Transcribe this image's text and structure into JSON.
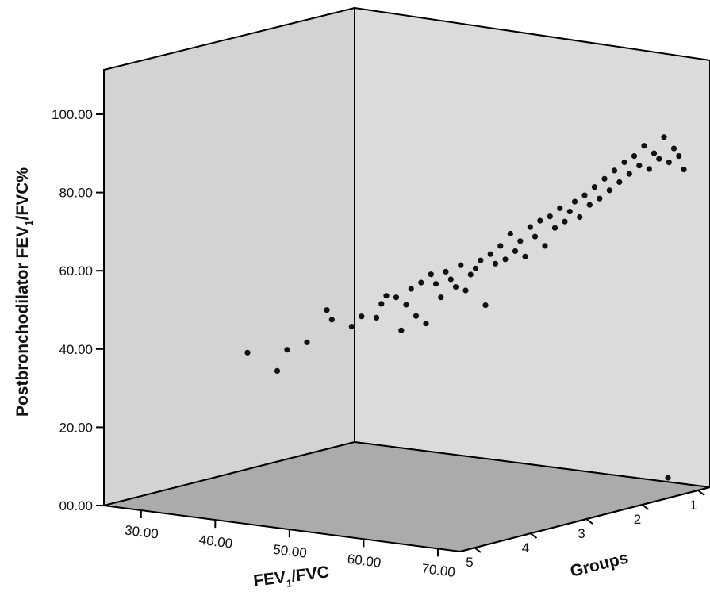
{
  "chart_data": {
    "type": "scatter",
    "title": "",
    "ylabel": {
      "main": "Postbronchodilator FEV",
      "sub": "1",
      "rest": "/FVC%"
    },
    "xlabel": {
      "main": "FEV",
      "sub": "1",
      "rest": "/FVC"
    },
    "zlabel": "Groups",
    "y_ticks": [
      "00.00",
      "20.00",
      "40.00",
      "60.00",
      "80.00",
      "100.00"
    ],
    "y_tick_values": [
      0,
      20,
      40,
      60,
      80,
      100
    ],
    "x_ticks": [
      "30.00",
      "40.00",
      "50.00",
      "60.00",
      "70.00"
    ],
    "x_tick_values": [
      30,
      40,
      50,
      60,
      70
    ],
    "z_ticks": [
      "5",
      "4",
      "3",
      "2",
      "1"
    ],
    "ylim": [
      0,
      110
    ],
    "colors": {
      "wall": "#d3d3d3",
      "floor": "#ababab",
      "points": "#111111",
      "frame": "#000000"
    },
    "points": [
      {
        "x": 33.5,
        "y": 37.5
      },
      {
        "x": 36.5,
        "y": 32.5
      },
      {
        "x": 37.5,
        "y": 37.8
      },
      {
        "x": 39.5,
        "y": 39.5
      },
      {
        "x": 41.5,
        "y": 47.5
      },
      {
        "x": 42.0,
        "y": 45.0
      },
      {
        "x": 44.0,
        "y": 43.0
      },
      {
        "x": 45.0,
        "y": 45.5
      },
      {
        "x": 46.5,
        "y": 45.0
      },
      {
        "x": 47.0,
        "y": 48.5
      },
      {
        "x": 47.5,
        "y": 50.5
      },
      {
        "x": 48.5,
        "y": 50.0
      },
      {
        "x": 49.0,
        "y": 41.5
      },
      {
        "x": 49.5,
        "y": 48.0
      },
      {
        "x": 50.0,
        "y": 52.0
      },
      {
        "x": 50.5,
        "y": 45.0
      },
      {
        "x": 51.0,
        "y": 53.5
      },
      {
        "x": 51.5,
        "y": 43.0
      },
      {
        "x": 52.0,
        "y": 55.5
      },
      {
        "x": 52.5,
        "y": 53.0
      },
      {
        "x": 53.0,
        "y": 49.5
      },
      {
        "x": 53.5,
        "y": 56.0
      },
      {
        "x": 54.0,
        "y": 54.0
      },
      {
        "x": 54.5,
        "y": 52.0
      },
      {
        "x": 55.0,
        "y": 57.5
      },
      {
        "x": 55.5,
        "y": 51.0
      },
      {
        "x": 56.0,
        "y": 55.0
      },
      {
        "x": 56.5,
        "y": 56.5
      },
      {
        "x": 57.0,
        "y": 58.5
      },
      {
        "x": 57.5,
        "y": 47.0
      },
      {
        "x": 58.0,
        "y": 60.0
      },
      {
        "x": 58.5,
        "y": 57.5
      },
      {
        "x": 59.0,
        "y": 62.0
      },
      {
        "x": 59.5,
        "y": 58.5
      },
      {
        "x": 60.0,
        "y": 65.0
      },
      {
        "x": 60.5,
        "y": 60.5
      },
      {
        "x": 61.0,
        "y": 63.0
      },
      {
        "x": 61.5,
        "y": 59.0
      },
      {
        "x": 62.0,
        "y": 66.5
      },
      {
        "x": 62.5,
        "y": 64.0
      },
      {
        "x": 63.0,
        "y": 68.0
      },
      {
        "x": 63.5,
        "y": 61.5
      },
      {
        "x": 64.0,
        "y": 69.0
      },
      {
        "x": 64.5,
        "y": 66.0
      },
      {
        "x": 65.0,
        "y": 71.0
      },
      {
        "x": 65.5,
        "y": 67.5
      },
      {
        "x": 66.0,
        "y": 70.0
      },
      {
        "x": 66.5,
        "y": 72.5
      },
      {
        "x": 67.0,
        "y": 68.5
      },
      {
        "x": 67.5,
        "y": 74.0
      },
      {
        "x": 68.0,
        "y": 71.5
      },
      {
        "x": 68.5,
        "y": 76.0
      },
      {
        "x": 69.0,
        "y": 73.0
      },
      {
        "x": 69.5,
        "y": 78.0
      },
      {
        "x": 70.0,
        "y": 75.0
      },
      {
        "x": 70.5,
        "y": 80.0
      },
      {
        "x": 71.0,
        "y": 77.0
      },
      {
        "x": 71.5,
        "y": 82.0
      },
      {
        "x": 72.0,
        "y": 79.0
      },
      {
        "x": 72.5,
        "y": 83.5
      },
      {
        "x": 73.0,
        "y": 81.0
      },
      {
        "x": 73.5,
        "y": 86.0
      },
      {
        "x": 74.0,
        "y": 80.0
      },
      {
        "x": 74.5,
        "y": 84.0
      },
      {
        "x": 75.0,
        "y": 82.5
      },
      {
        "x": 75.5,
        "y": 88.0
      },
      {
        "x": 76.0,
        "y": 81.5
      },
      {
        "x": 76.5,
        "y": 85.0
      },
      {
        "x": 77.0,
        "y": 83.0
      },
      {
        "x": 77.5,
        "y": 79.5
      }
    ]
  }
}
